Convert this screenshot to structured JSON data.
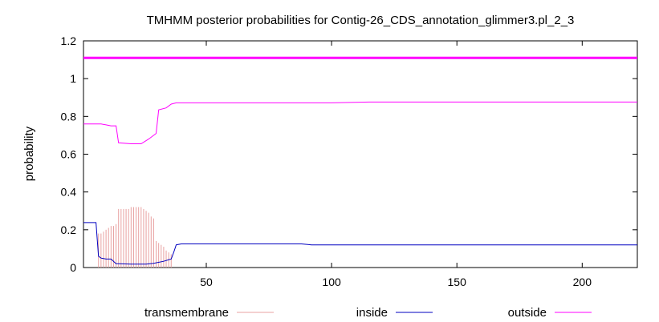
{
  "chart_data": {
    "type": "line",
    "title": "TMHMM posterior probabilities for Contig-26_CDS_annotation_glimmer3.pl_2_3",
    "xlabel": "",
    "ylabel": "probability",
    "xlim": [
      1,
      222
    ],
    "ylim": [
      0,
      1.2
    ],
    "xticks": [
      50,
      100,
      150,
      200
    ],
    "xtick_labels": [
      "50",
      "100",
      "150",
      "200"
    ],
    "yticks": [
      0,
      0.2,
      0.4,
      0.6,
      0.8,
      1,
      1.2
    ],
    "ytick_labels": [
      "0",
      "0.2",
      "0.4",
      "0.6",
      "0.8",
      "1",
      "1.2"
    ],
    "grid": false,
    "legend_position": "bottom",
    "reference_line": {
      "y": 1.11,
      "color": "#ff00ff"
    },
    "series": [
      {
        "name": "transmembrane",
        "style": "impulses",
        "color": "#e8a0a0",
        "x": [
          7,
          8,
          9,
          10,
          11,
          12,
          13,
          14,
          15,
          16,
          17,
          18,
          19,
          20,
          21,
          22,
          23,
          24,
          25,
          26,
          27,
          28,
          29,
          30,
          31,
          32,
          33,
          34,
          35,
          36
        ],
        "y": [
          0.18,
          0.18,
          0.19,
          0.2,
          0.21,
          0.22,
          0.22,
          0.23,
          0.31,
          0.31,
          0.31,
          0.31,
          0.31,
          0.32,
          0.32,
          0.32,
          0.32,
          0.32,
          0.31,
          0.3,
          0.29,
          0.27,
          0.26,
          0.14,
          0.13,
          0.12,
          0.11,
          0.09,
          0.08,
          0.07
        ]
      },
      {
        "name": "inside",
        "style": "line",
        "color": "#0000c0",
        "x": [
          1,
          6,
          7,
          8,
          10,
          12,
          14,
          15,
          20,
          26,
          29,
          33,
          36,
          37,
          38,
          40,
          60,
          88,
          92,
          120,
          222
        ],
        "y": [
          0.238,
          0.238,
          0.06,
          0.05,
          0.045,
          0.045,
          0.02,
          0.02,
          0.018,
          0.018,
          0.022,
          0.033,
          0.045,
          0.08,
          0.12,
          0.125,
          0.125,
          0.125,
          0.12,
          0.12,
          0.12
        ]
      },
      {
        "name": "outside",
        "style": "line",
        "color": "#ff00ff",
        "x": [
          1,
          8,
          10,
          12,
          14,
          15,
          20,
          24,
          27,
          30,
          31,
          34,
          36,
          38,
          40,
          60,
          90,
          100,
          115,
          130,
          222
        ],
        "y": [
          0.76,
          0.76,
          0.755,
          0.75,
          0.75,
          0.66,
          0.655,
          0.655,
          0.68,
          0.71,
          0.835,
          0.845,
          0.865,
          0.872,
          0.872,
          0.872,
          0.872,
          0.872,
          0.876,
          0.876,
          0.876
        ]
      }
    ]
  }
}
